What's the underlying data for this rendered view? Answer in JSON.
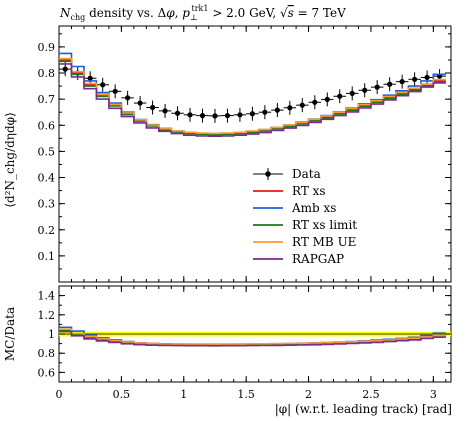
{
  "title": "N_chg density vs. Δφ, p_⊥^trk1 > 2.0 GeV, √s = 7 TeV",
  "chart_data": [
    {
      "type": "line",
      "panel": "main",
      "ylabel": "⟨d²N_chg/dηdφ⟩",
      "ylim": [
        0.0,
        0.98
      ],
      "yticks": [
        0.1,
        0.2,
        0.3,
        0.4,
        0.5,
        0.6,
        0.7,
        0.8,
        0.9
      ],
      "xlim": [
        0.0,
        3.1416
      ],
      "x": [
        0.05,
        0.15,
        0.25,
        0.35,
        0.45,
        0.55,
        0.65,
        0.75,
        0.85,
        0.95,
        1.05,
        1.15,
        1.25,
        1.35,
        1.45,
        1.55,
        1.65,
        1.75,
        1.85,
        1.95,
        2.05,
        2.15,
        2.25,
        2.35,
        2.45,
        2.55,
        2.65,
        2.75,
        2.85,
        2.95,
        3.05
      ],
      "series": [
        {
          "name": "Data",
          "style": "points",
          "color": "#000000",
          "values": [
            0.815,
            0.8,
            0.78,
            0.755,
            0.73,
            0.705,
            0.685,
            0.668,
            0.655,
            0.646,
            0.64,
            0.637,
            0.636,
            0.637,
            0.64,
            0.644,
            0.65,
            0.658,
            0.667,
            0.677,
            0.688,
            0.699,
            0.711,
            0.722,
            0.734,
            0.746,
            0.757,
            0.767,
            0.776,
            0.783,
            0.788
          ]
        },
        {
          "name": "RT xs",
          "style": "step",
          "color": "#e41a1c",
          "values": [
            0.85,
            0.8,
            0.755,
            0.715,
            0.678,
            0.645,
            0.62,
            0.6,
            0.586,
            0.577,
            0.571,
            0.568,
            0.567,
            0.568,
            0.571,
            0.575,
            0.581,
            0.589,
            0.598,
            0.608,
            0.62,
            0.632,
            0.646,
            0.66,
            0.675,
            0.69,
            0.706,
            0.721,
            0.737,
            0.752,
            0.77
          ]
        },
        {
          "name": "Amb xs",
          "style": "step",
          "color": "#1f5fd6",
          "values": [
            0.875,
            0.825,
            0.77,
            0.725,
            0.685,
            0.65,
            0.622,
            0.602,
            0.588,
            0.578,
            0.572,
            0.569,
            0.568,
            0.569,
            0.572,
            0.577,
            0.583,
            0.591,
            0.601,
            0.612,
            0.624,
            0.637,
            0.651,
            0.666,
            0.682,
            0.698,
            0.715,
            0.732,
            0.75,
            0.77,
            0.795
          ]
        },
        {
          "name": "RT xs limit",
          "style": "step",
          "color": "#1a7a1a",
          "values": [
            0.845,
            0.795,
            0.75,
            0.71,
            0.674,
            0.641,
            0.616,
            0.597,
            0.583,
            0.574,
            0.568,
            0.565,
            0.564,
            0.565,
            0.568,
            0.572,
            0.578,
            0.586,
            0.595,
            0.605,
            0.617,
            0.629,
            0.643,
            0.657,
            0.672,
            0.687,
            0.702,
            0.718,
            0.733,
            0.749,
            0.765
          ]
        },
        {
          "name": "RT MB UE",
          "style": "step",
          "color": "#ff9a2e",
          "values": [
            0.855,
            0.805,
            0.76,
            0.718,
            0.68,
            0.647,
            0.621,
            0.601,
            0.587,
            0.578,
            0.573,
            0.57,
            0.569,
            0.57,
            0.573,
            0.578,
            0.584,
            0.592,
            0.601,
            0.611,
            0.623,
            0.636,
            0.65,
            0.664,
            0.679,
            0.694,
            0.71,
            0.726,
            0.742,
            0.758,
            0.775
          ]
        },
        {
          "name": "RAPGAP",
          "style": "step",
          "color": "#7b2c91",
          "values": [
            0.835,
            0.785,
            0.74,
            0.7,
            0.665,
            0.633,
            0.609,
            0.59,
            0.577,
            0.568,
            0.562,
            0.559,
            0.558,
            0.559,
            0.562,
            0.566,
            0.572,
            0.58,
            0.589,
            0.599,
            0.611,
            0.623,
            0.637,
            0.651,
            0.666,
            0.681,
            0.697,
            0.713,
            0.729,
            0.746,
            0.762
          ]
        }
      ],
      "legend_placement": "lower-right"
    },
    {
      "type": "line",
      "panel": "ratio",
      "ylabel": "MC/Data",
      "ylim": [
        0.5,
        1.5
      ],
      "yticks": [
        0.6,
        0.8,
        1.0,
        1.2,
        1.4
      ],
      "xlabel": "|φ| (w.r.t. leading track) [rad]",
      "xlim": [
        0.0,
        3.1416
      ],
      "xticks": [
        0,
        0.5,
        1,
        1.5,
        2,
        2.5,
        3
      ],
      "band": {
        "low": 0.975,
        "high": 1.025,
        "color": "#ffff00"
      },
      "x": [
        0.05,
        0.15,
        0.25,
        0.35,
        0.45,
        0.55,
        0.65,
        0.75,
        0.85,
        0.95,
        1.05,
        1.15,
        1.25,
        1.35,
        1.45,
        1.55,
        1.65,
        1.75,
        1.85,
        1.95,
        2.05,
        2.15,
        2.25,
        2.35,
        2.45,
        2.55,
        2.65,
        2.75,
        2.85,
        2.95,
        3.05
      ],
      "series": [
        {
          "name": "RT xs",
          "style": "step",
          "color": "#e41a1c",
          "values": [
            1.04,
            1.0,
            0.97,
            0.95,
            0.93,
            0.915,
            0.905,
            0.9,
            0.895,
            0.893,
            0.892,
            0.891,
            0.892,
            0.891,
            0.892,
            0.893,
            0.893,
            0.895,
            0.897,
            0.898,
            0.901,
            0.904,
            0.909,
            0.914,
            0.92,
            0.925,
            0.933,
            0.94,
            0.95,
            0.96,
            0.977
          ]
        },
        {
          "name": "Amb xs",
          "style": "step",
          "color": "#1f5fd6",
          "values": [
            1.07,
            1.03,
            0.99,
            0.96,
            0.94,
            0.922,
            0.908,
            0.901,
            0.898,
            0.895,
            0.894,
            0.893,
            0.893,
            0.893,
            0.894,
            0.896,
            0.897,
            0.898,
            0.901,
            0.904,
            0.907,
            0.911,
            0.916,
            0.922,
            0.929,
            0.936,
            0.945,
            0.954,
            0.966,
            0.983,
            1.008
          ]
        },
        {
          "name": "RT xs limit",
          "style": "step",
          "color": "#1a7a1a",
          "values": [
            1.035,
            0.995,
            0.962,
            0.94,
            0.923,
            0.909,
            0.899,
            0.894,
            0.89,
            0.889,
            0.888,
            0.887,
            0.887,
            0.887,
            0.888,
            0.888,
            0.889,
            0.891,
            0.892,
            0.894,
            0.897,
            0.9,
            0.904,
            0.91,
            0.916,
            0.921,
            0.927,
            0.936,
            0.945,
            0.957,
            0.971
          ]
        },
        {
          "name": "RT MB UE",
          "style": "step",
          "color": "#ff9a2e",
          "values": [
            1.05,
            1.005,
            0.974,
            0.951,
            0.932,
            0.918,
            0.907,
            0.9,
            0.896,
            0.895,
            0.895,
            0.895,
            0.895,
            0.895,
            0.895,
            0.898,
            0.898,
            0.9,
            0.901,
            0.903,
            0.906,
            0.91,
            0.914,
            0.919,
            0.925,
            0.93,
            0.938,
            0.947,
            0.956,
            0.968,
            0.983
          ]
        },
        {
          "name": "RAPGAP",
          "style": "step",
          "color": "#7b2c91",
          "values": [
            1.025,
            0.981,
            0.949,
            0.927,
            0.911,
            0.898,
            0.889,
            0.883,
            0.881,
            0.879,
            0.878,
            0.878,
            0.877,
            0.878,
            0.878,
            0.879,
            0.88,
            0.881,
            0.883,
            0.885,
            0.888,
            0.891,
            0.896,
            0.902,
            0.907,
            0.913,
            0.921,
            0.93,
            0.939,
            0.953,
            0.967
          ]
        }
      ]
    }
  ]
}
